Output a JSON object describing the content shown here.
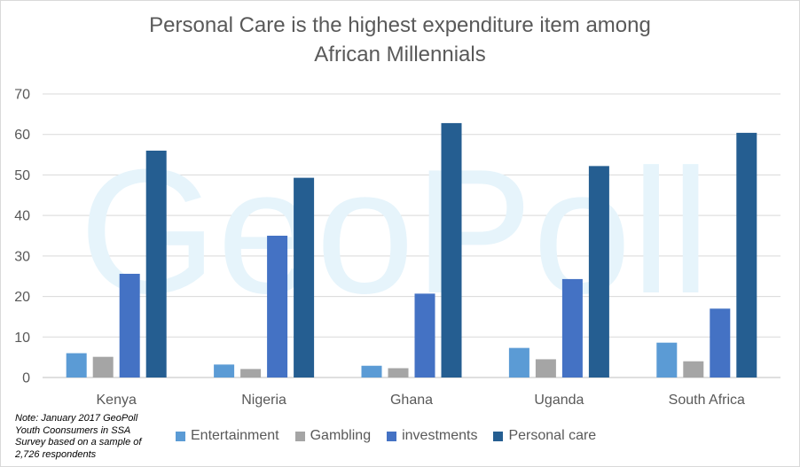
{
  "chart_data": {
    "type": "bar",
    "title_lines": [
      "Personal Care is the highest expenditure item among",
      "African Millennials"
    ],
    "categories": [
      "Kenya",
      "Nigeria",
      "Ghana",
      "Uganda",
      "South Africa"
    ],
    "series": [
      {
        "name": "Entertainment",
        "color": "#5b9bd5",
        "values": [
          6,
          3.2,
          2.9,
          7.3,
          8.6
        ]
      },
      {
        "name": "Gambling",
        "color": "#a5a5a5",
        "values": [
          5.1,
          2.1,
          2.3,
          4.5,
          4.0
        ]
      },
      {
        "name": "investments",
        "color": "#4472c4",
        "values": [
          25.6,
          35,
          20.7,
          24.3,
          17
        ]
      },
      {
        "name": "Personal care",
        "color": "#255e91",
        "values": [
          56,
          49.3,
          62.8,
          52.2,
          60.4
        ]
      }
    ],
    "yticks": [
      0,
      10,
      20,
      30,
      40,
      50,
      60,
      70
    ],
    "ylim": [
      0,
      70
    ],
    "grid": true,
    "legend_position": "bottom",
    "watermark": "GeoPoll",
    "note": "Note:  January 2017 GeoPoll Youth Coonsumers in SSA Survey based on a sample of 2,726 respondents"
  }
}
